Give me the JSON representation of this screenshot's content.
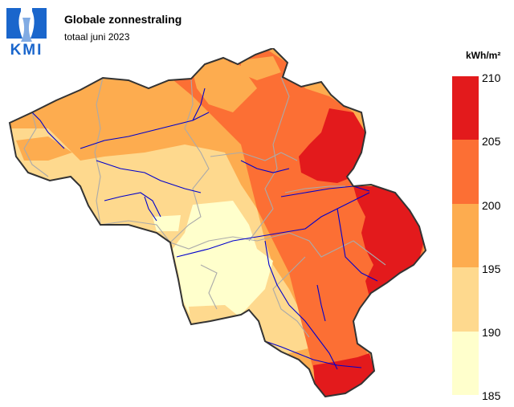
{
  "header": {
    "logo_text": "KMI",
    "title": "Globale zonnestraling",
    "subtitle": "totaal juni 2023"
  },
  "legend": {
    "unit": "kWh/m²",
    "ticks": [
      "210",
      "205",
      "200",
      "195",
      "190",
      "185"
    ],
    "colors": [
      "#e31a1c",
      "#fc6f34",
      "#fdac4f",
      "#fed98e",
      "#ffffcc"
    ]
  },
  "map": {
    "region": "Belgium",
    "border_color": "#333333",
    "province_border_color": "#aaaaaa",
    "river_color": "#0000cc"
  }
}
